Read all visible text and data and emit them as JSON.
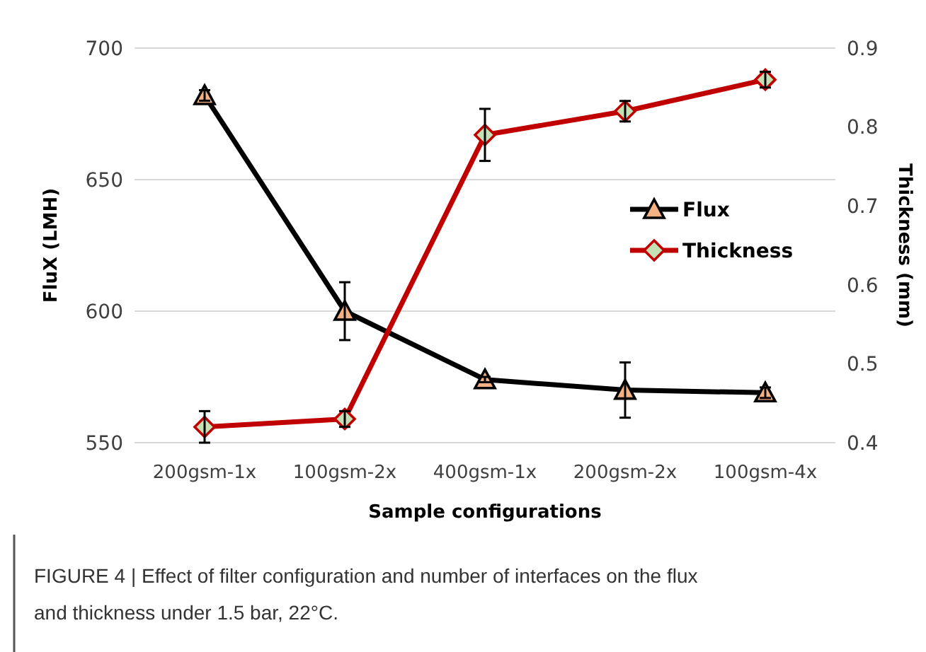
{
  "chart_data": {
    "type": "line",
    "xlabel": "Sample configurations",
    "ylabel": "FluX (LMH)",
    "y2label": "Thickness (mm)",
    "categories": [
      "200gsm-1x",
      "100gsm-2x",
      "400gsm-1x",
      "200gsm-2x",
      "100gsm-4x"
    ],
    "series": [
      {
        "name": "Flux",
        "color": "#000000",
        "marker": "triangle",
        "values": [
          682,
          600,
          574,
          570,
          569
        ],
        "errors": [
          2,
          11,
          1,
          10.5,
          2
        ]
      },
      {
        "name": "Thickness",
        "color": "#c00000",
        "marker": "diamond",
        "axis": "y2",
        "values": [
          0.42,
          0.43,
          0.79,
          0.82,
          0.86
        ],
        "errors": [
          0.02,
          0.01,
          0.033,
          0.013,
          0.01
        ]
      }
    ],
    "ylim": [
      550,
      700
    ],
    "yticks": [
      550,
      600,
      650,
      700
    ],
    "y2lim": [
      0.4,
      0.9
    ],
    "y2ticks": [
      {
        "value": 0.4,
        "label": "0.4"
      },
      {
        "value": 0.5,
        "label": "0.5"
      },
      {
        "value": 0.6,
        "label": "0.6"
      },
      {
        "value": 0.7,
        "label": "0.7"
      },
      {
        "value": 0.8,
        "label": "0.8"
      },
      {
        "value": 0.9,
        "label": "0.9"
      }
    ],
    "grid": "y",
    "legend": "right",
    "line_style": "solid",
    "annotations": [
      "FIGURE 4 | Effect of filter configuration and number of interfaces on the flux and thickness under 1.5 bar, 22°C."
    ]
  }
}
